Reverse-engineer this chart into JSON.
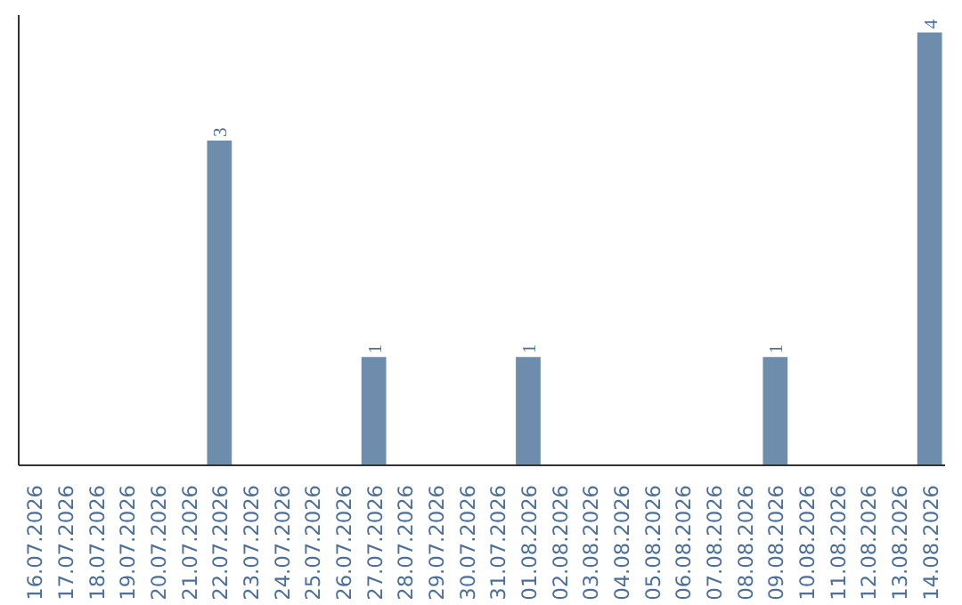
{
  "chart_data": {
    "type": "bar",
    "categories": [
      "16.07.2026",
      "17.07.2026",
      "18.07.2026",
      "19.07.2026",
      "20.07.2026",
      "21.07.2026",
      "22.07.2026",
      "23.07.2026",
      "24.07.2026",
      "25.07.2026",
      "26.07.2026",
      "27.07.2026",
      "28.07.2026",
      "29.07.2026",
      "30.07.2026",
      "31.07.2026",
      "01.08.2026",
      "02.08.2026",
      "03.08.2026",
      "04.08.2026",
      "05.08.2026",
      "06.08.2026",
      "07.08.2026",
      "08.08.2026",
      "09.08.2026",
      "10.08.2026",
      "11.08.2026",
      "12.08.2026",
      "13.08.2026",
      "14.08.2026"
    ],
    "values": [
      0,
      0,
      0,
      0,
      0,
      0,
      3,
      0,
      0,
      0,
      0,
      1,
      0,
      0,
      0,
      0,
      1,
      0,
      0,
      0,
      0,
      0,
      0,
      0,
      1,
      0,
      0,
      0,
      0,
      4
    ],
    "value_labels": [
      null,
      null,
      null,
      null,
      null,
      null,
      "3",
      null,
      null,
      null,
      null,
      "1",
      null,
      null,
      null,
      null,
      "1",
      null,
      null,
      null,
      null,
      null,
      null,
      null,
      "1",
      null,
      null,
      null,
      null,
      "4"
    ],
    "color": "#6e8cab",
    "grid": false
  }
}
